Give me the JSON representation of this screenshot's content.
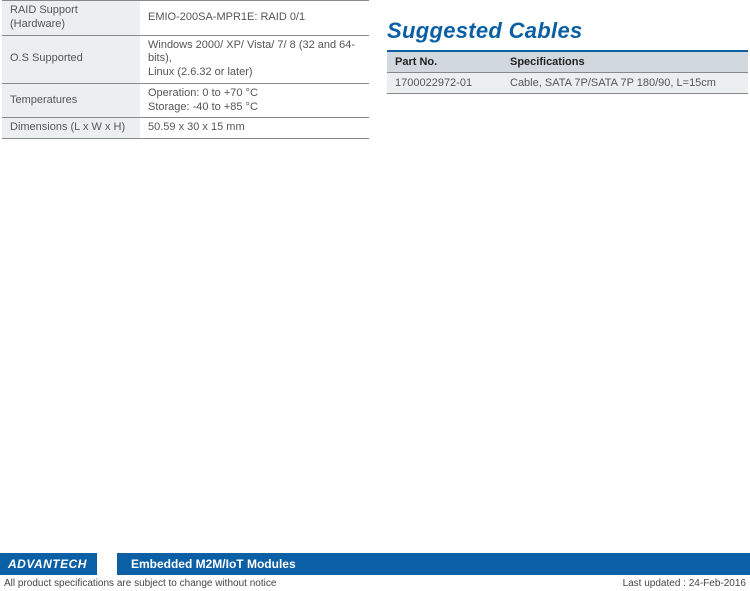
{
  "specTable": {
    "rows": [
      {
        "label": "RAID Support (Hardware)",
        "value": "EMIO-200SA-MPR1E: RAID 0/1"
      },
      {
        "label": "O.S Supported",
        "value": "Windows 2000/ XP/ Vista/ 7/ 8 (32 and 64-bits),\nLinux (2.6.32 or later)"
      },
      {
        "label": "Temperatures",
        "value": "Operation: 0 to +70 °C\nStorage: -40 to +85 °C"
      },
      {
        "label": "Dimensions (L x W x H)",
        "value": "50.59 x 30 x 15 mm"
      }
    ]
  },
  "cables": {
    "title": "Suggested Cables",
    "headers": {
      "part": "Part No.",
      "spec": "Specifications"
    },
    "rows": [
      {
        "part": "1700022972-01",
        "spec": "Cable, SATA 7P/SATA 7P 180/90, L=15cm"
      }
    ]
  },
  "footer": {
    "logo": "ADVANTECH",
    "module": "Embedded M2M/IoT Modules",
    "notice": "All product specifications are subject to change without notice",
    "updated": "Last updated : 24-Feb-2016"
  },
  "colors": {
    "brandBlue": "#0b5fa5",
    "headerFill": "#d1d9df",
    "rowFill": "#eceff0",
    "border": "#888"
  }
}
